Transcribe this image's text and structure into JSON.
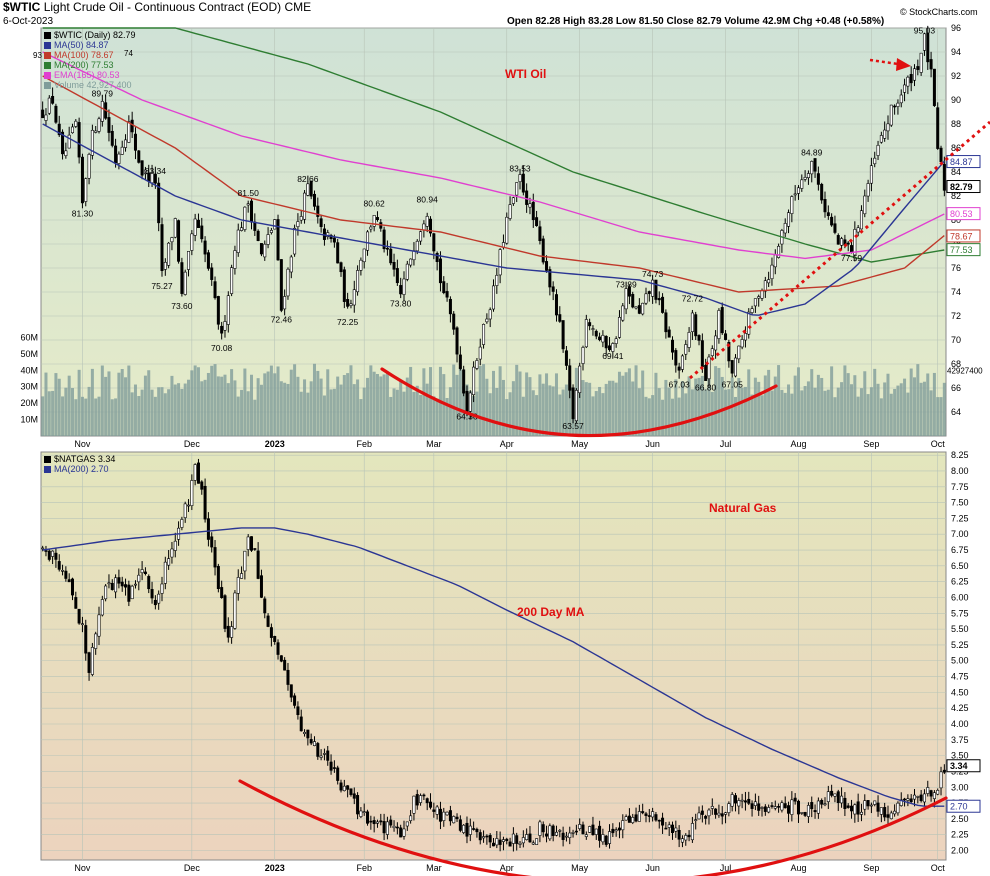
{
  "header": {
    "symbol": "$WTIC",
    "description": "Light Crude Oil - Continuous Contract (EOD)",
    "exchange": "CME",
    "date": "6-Oct-2023",
    "ohlc": "Open 82.28   High 83.28   Low 81.50   Close 82.79   Volume 42.9M   Chg +0.48 (+0.58%)",
    "watermark": "© StockCharts.com"
  },
  "colors": {
    "oil_bg": "#cfe2cf",
    "gas_bg": "#ead9b8",
    "candle": "#000000",
    "volume": "#7f9c9a",
    "ma50": "#2b3694",
    "ma100": "#c0392b",
    "ma200": "#2e7d32",
    "ema165": "#e040d0",
    "annotation": "#e01010"
  },
  "chart_data": [
    {
      "type": "candlestick",
      "panel": "oil",
      "title": "WTI Oil",
      "legend": [
        {
          "label": "$WTIC (Daily) 82.79",
          "color": "#000000"
        },
        {
          "label": "MA(50) 84.87",
          "color": "#2b3694"
        },
        {
          "label": "MA(100) 78.67",
          "color": "#c0392b"
        },
        {
          "label": "MA(200) 77.53",
          "color": "#2e7d32"
        },
        {
          "label": "EMA(165) 80.53",
          "color": "#e040d0"
        },
        {
          "label": "Volume 42,927,400",
          "color": "#7f9c9a"
        }
      ],
      "x_labels": [
        "Nov",
        "Dec",
        "2023",
        "Feb",
        "Mar",
        "Apr",
        "May",
        "Jun",
        "Jul",
        "Aug",
        "Sep",
        "Oct"
      ],
      "ylim": [
        62,
        96
      ],
      "y_ticks": [
        64,
        66,
        68,
        70,
        72,
        74,
        76,
        78,
        80,
        82,
        84,
        86,
        88,
        90,
        92,
        94,
        96
      ],
      "volume_ticks": [
        "10M",
        "20M",
        "30M",
        "40M",
        "50M",
        "60M"
      ],
      "volume_ylim": [
        0,
        70
      ],
      "last_volume_label": "42927400",
      "price_keyframes": [
        [
          0,
          89
        ],
        [
          3,
          90
        ],
        [
          6,
          85
        ],
        [
          10,
          88
        ],
        [
          12,
          81.3
        ],
        [
          14,
          86
        ],
        [
          18,
          89.8
        ],
        [
          22,
          85
        ],
        [
          26,
          88
        ],
        [
          30,
          84
        ],
        [
          34,
          83.3
        ],
        [
          36,
          75.3
        ],
        [
          40,
          80
        ],
        [
          42,
          73.6
        ],
        [
          46,
          80
        ],
        [
          50,
          76
        ],
        [
          54,
          70.1
        ],
        [
          58,
          78
        ],
        [
          62,
          81.5
        ],
        [
          66,
          77
        ],
        [
          70,
          80
        ],
        [
          72,
          72.5
        ],
        [
          76,
          79
        ],
        [
          80,
          82.7
        ],
        [
          84,
          79
        ],
        [
          88,
          78
        ],
        [
          92,
          72.3
        ],
        [
          96,
          77
        ],
        [
          100,
          80.6
        ],
        [
          104,
          77
        ],
        [
          108,
          73.8
        ],
        [
          112,
          78
        ],
        [
          116,
          80.9
        ],
        [
          120,
          75
        ],
        [
          124,
          71
        ],
        [
          128,
          64.4
        ],
        [
          132,
          70
        ],
        [
          136,
          74
        ],
        [
          140,
          80
        ],
        [
          144,
          83.5
        ],
        [
          148,
          80
        ],
        [
          152,
          76
        ],
        [
          156,
          71
        ],
        [
          160,
          63.6
        ],
        [
          164,
          72
        ],
        [
          168,
          70
        ],
        [
          172,
          69.4
        ],
        [
          176,
          73.9
        ],
        [
          180,
          72
        ],
        [
          184,
          74.7
        ],
        [
          188,
          71
        ],
        [
          192,
          67
        ],
        [
          196,
          72
        ],
        [
          200,
          66.8
        ],
        [
          204,
          72
        ],
        [
          208,
          67.1
        ],
        [
          212,
          71
        ],
        [
          216,
          74
        ],
        [
          220,
          76
        ],
        [
          224,
          80
        ],
        [
          228,
          83
        ],
        [
          232,
          84.9
        ],
        [
          236,
          81
        ],
        [
          240,
          78
        ],
        [
          244,
          77.6
        ],
        [
          248,
          82
        ],
        [
          252,
          86
        ],
        [
          256,
          89
        ],
        [
          260,
          91
        ],
        [
          264,
          93
        ],
        [
          266,
          95
        ],
        [
          268,
          92
        ],
        [
          270,
          86
        ],
        [
          272,
          82.8
        ]
      ],
      "ma200_keyframes": [
        [
          40,
          96
        ],
        [
          80,
          93
        ],
        [
          120,
          89
        ],
        [
          160,
          84
        ],
        [
          200,
          80.5
        ],
        [
          230,
          78
        ],
        [
          250,
          76.5
        ],
        [
          272,
          77.5
        ]
      ],
      "ema165_keyframes": [
        [
          0,
          94
        ],
        [
          30,
          90
        ],
        [
          60,
          87
        ],
        [
          90,
          85
        ],
        [
          120,
          83.5
        ],
        [
          150,
          81.5
        ],
        [
          180,
          79
        ],
        [
          210,
          77.5
        ],
        [
          230,
          76.8
        ],
        [
          250,
          77.5
        ],
        [
          272,
          80.5
        ]
      ],
      "ma100_keyframes": [
        [
          0,
          92
        ],
        [
          20,
          89
        ],
        [
          40,
          86
        ],
        [
          60,
          82
        ],
        [
          90,
          80
        ],
        [
          120,
          79
        ],
        [
          150,
          77
        ],
        [
          180,
          76
        ],
        [
          210,
          74
        ],
        [
          240,
          74.5
        ],
        [
          260,
          76
        ],
        [
          272,
          78.7
        ]
      ],
      "ma50_keyframes": [
        [
          0,
          88
        ],
        [
          20,
          85
        ],
        [
          40,
          82
        ],
        [
          60,
          80
        ],
        [
          80,
          79
        ],
        [
          100,
          78
        ],
        [
          120,
          77
        ],
        [
          140,
          76
        ],
        [
          160,
          75.5
        ],
        [
          180,
          75
        ],
        [
          200,
          73.5
        ],
        [
          215,
          72
        ],
        [
          230,
          73
        ],
        [
          245,
          76
        ],
        [
          260,
          81
        ],
        [
          272,
          84.9
        ]
      ],
      "price_labels": [
        {
          "text": "95.03",
          "i": 266,
          "v": 95.03,
          "pos": "above"
        },
        {
          "text": "89.79",
          "i": 18,
          "v": 89.79,
          "pos": "above"
        },
        {
          "text": "84.89",
          "i": 232,
          "v": 84.89,
          "pos": "above"
        },
        {
          "text": "83.53",
          "i": 144,
          "v": 83.53,
          "pos": "above"
        },
        {
          "text": "83.34",
          "i": 34,
          "v": 83.34,
          "pos": "above"
        },
        {
          "text": "82.66",
          "i": 80,
          "v": 82.66,
          "pos": "above"
        },
        {
          "text": "81.50",
          "i": 62,
          "v": 81.5,
          "pos": "above"
        },
        {
          "text": "80.94",
          "i": 116,
          "v": 80.94,
          "pos": "above"
        },
        {
          "text": "80.62",
          "i": 100,
          "v": 80.62,
          "pos": "above"
        },
        {
          "text": "81.30",
          "i": 12,
          "v": 81.3,
          "pos": "below"
        },
        {
          "text": "75.27",
          "i": 36,
          "v": 75.27,
          "pos": "below"
        },
        {
          "text": "74.73",
          "i": 184,
          "v": 74.73,
          "pos": "above"
        },
        {
          "text": "73.60",
          "i": 42,
          "v": 73.6,
          "pos": "below"
        },
        {
          "text": "73.89",
          "i": 176,
          "v": 73.89,
          "pos": "above"
        },
        {
          "text": "73.80",
          "i": 108,
          "v": 73.8,
          "pos": "below"
        },
        {
          "text": "72.72",
          "i": 196,
          "v": 72.72,
          "pos": "above"
        },
        {
          "text": "72.46",
          "i": 72,
          "v": 72.46,
          "pos": "below"
        },
        {
          "text": "72.25",
          "i": 92,
          "v": 72.25,
          "pos": "below"
        },
        {
          "text": "77.59",
          "i": 244,
          "v": 77.59,
          "pos": "below"
        },
        {
          "text": "70.08",
          "i": 54,
          "v": 70.08,
          "pos": "below"
        },
        {
          "text": "69.41",
          "i": 172,
          "v": 69.41,
          "pos": "below"
        },
        {
          "text": "67.03",
          "i": 192,
          "v": 67.03,
          "pos": "below"
        },
        {
          "text": "66.80",
          "i": 200,
          "v": 66.8,
          "pos": "below"
        },
        {
          "text": "67.05",
          "i": 208,
          "v": 67.05,
          "pos": "below"
        },
        {
          "text": "64.36",
          "i": 128,
          "v": 64.36,
          "pos": "below"
        },
        {
          "text": "63.57",
          "i": 160,
          "v": 63.57,
          "pos": "below"
        }
      ],
      "right_value_labels": [
        {
          "text": "84.87",
          "v": 84.87,
          "color": "#2b3694"
        },
        {
          "text": "82.79",
          "v": 82.79,
          "color": "#000000"
        },
        {
          "text": "80.53",
          "v": 80.53,
          "color": "#e040d0"
        },
        {
          "text": "78.67",
          "v": 78.67,
          "color": "#c0392b"
        },
        {
          "text": "77.53",
          "v": 77.53,
          "color": "#2e7d32"
        }
      ],
      "left_edge_label": "93",
      "left_top_label": "74",
      "annotations": {
        "arc_text": "",
        "uptrend_line": "dotted red trendline from July low through September",
        "arrow": "red dotted arrow pointing at 95.03 high"
      }
    },
    {
      "type": "candlestick",
      "panel": "gas",
      "title": "Natural Gas",
      "ma_label": "200 Day MA",
      "legend": [
        {
          "label": "$NATGAS 3.34",
          "color": "#000000"
        },
        {
          "label": "MA(200) 2.70",
          "color": "#2b3694"
        }
      ],
      "x_labels": [
        "Nov",
        "Dec",
        "2023",
        "Feb",
        "Mar",
        "Apr",
        "May",
        "Jun",
        "Jul",
        "Aug",
        "Sep",
        "Oct"
      ],
      "ylim": [
        1.85,
        8.3
      ],
      "y_ticks": [
        "2.00",
        "2.25",
        "2.50",
        "2.75",
        "3.00",
        "3.25",
        "3.50",
        "3.75",
        "4.00",
        "4.25",
        "4.50",
        "4.75",
        "5.00",
        "5.25",
        "5.50",
        "5.75",
        "6.00",
        "6.25",
        "6.50",
        "6.75",
        "7.00",
        "7.25",
        "7.50",
        "7.75",
        "8.00",
        "8.25"
      ],
      "price_keyframes": [
        [
          0,
          6.8
        ],
        [
          4,
          6.6
        ],
        [
          8,
          6.2
        ],
        [
          12,
          5.5
        ],
        [
          14,
          4.9
        ],
        [
          18,
          6.0
        ],
        [
          22,
          6.3
        ],
        [
          26,
          6.0
        ],
        [
          30,
          6.4
        ],
        [
          34,
          5.9
        ],
        [
          38,
          6.7
        ],
        [
          40,
          7.0
        ],
        [
          44,
          7.5
        ],
        [
          46,
          8.2
        ],
        [
          48,
          7.6
        ],
        [
          50,
          7.0
        ],
        [
          54,
          5.9
        ],
        [
          56,
          5.3
        ],
        [
          58,
          6.0
        ],
        [
          62,
          6.9
        ],
        [
          64,
          6.7
        ],
        [
          66,
          6.0
        ],
        [
          68,
          5.6
        ],
        [
          70,
          5.3
        ],
        [
          72,
          5.0
        ],
        [
          74,
          4.6
        ],
        [
          76,
          4.2
        ],
        [
          78,
          4.0
        ],
        [
          80,
          3.8
        ],
        [
          84,
          3.5
        ],
        [
          88,
          3.2
        ],
        [
          92,
          2.9
        ],
        [
          96,
          2.6
        ],
        [
          100,
          2.45
        ],
        [
          104,
          2.35
        ],
        [
          108,
          2.3
        ],
        [
          110,
          2.5
        ],
        [
          112,
          2.75
        ],
        [
          114,
          2.9
        ],
        [
          116,
          2.8
        ],
        [
          120,
          2.55
        ],
        [
          124,
          2.45
        ],
        [
          128,
          2.3
        ],
        [
          132,
          2.2
        ],
        [
          136,
          2.15
        ],
        [
          140,
          2.2
        ],
        [
          144,
          2.1
        ],
        [
          148,
          2.2
        ],
        [
          150,
          2.35
        ],
        [
          154,
          2.3
        ],
        [
          158,
          2.2
        ],
        [
          162,
          2.35
        ],
        [
          166,
          2.25
        ],
        [
          170,
          2.2
        ],
        [
          174,
          2.35
        ],
        [
          178,
          2.5
        ],
        [
          182,
          2.6
        ],
        [
          186,
          2.45
        ],
        [
          190,
          2.25
        ],
        [
          194,
          2.25
        ],
        [
          198,
          2.5
        ],
        [
          202,
          2.6
        ],
        [
          206,
          2.65
        ],
        [
          210,
          2.9
        ],
        [
          214,
          2.75
        ],
        [
          218,
          2.6
        ],
        [
          222,
          2.65
        ],
        [
          226,
          2.7
        ],
        [
          230,
          2.6
        ],
        [
          234,
          2.75
        ],
        [
          238,
          2.9
        ],
        [
          242,
          2.7
        ],
        [
          246,
          2.65
        ],
        [
          250,
          2.75
        ],
        [
          254,
          2.6
        ],
        [
          258,
          2.7
        ],
        [
          262,
          2.85
        ],
        [
          266,
          2.9
        ],
        [
          268,
          2.9
        ],
        [
          270,
          3.0
        ],
        [
          272,
          3.34
        ]
      ],
      "ma200_keyframes": [
        [
          0,
          6.75
        ],
        [
          20,
          6.9
        ],
        [
          40,
          7.0
        ],
        [
          60,
          7.1
        ],
        [
          70,
          7.1
        ],
        [
          80,
          7.0
        ],
        [
          95,
          6.8
        ],
        [
          110,
          6.5
        ],
        [
          125,
          6.2
        ],
        [
          140,
          5.8
        ],
        [
          160,
          5.3
        ],
        [
          180,
          4.7
        ],
        [
          200,
          4.1
        ],
        [
          220,
          3.6
        ],
        [
          240,
          3.15
        ],
        [
          255,
          2.85
        ],
        [
          265,
          2.7
        ],
        [
          272,
          2.7
        ]
      ],
      "right_value_labels": [
        {
          "text": "3.34",
          "v": 3.34,
          "color": "#000000"
        },
        {
          "text": "2.70",
          "v": 2.7,
          "color": "#2b3694"
        }
      ]
    }
  ]
}
